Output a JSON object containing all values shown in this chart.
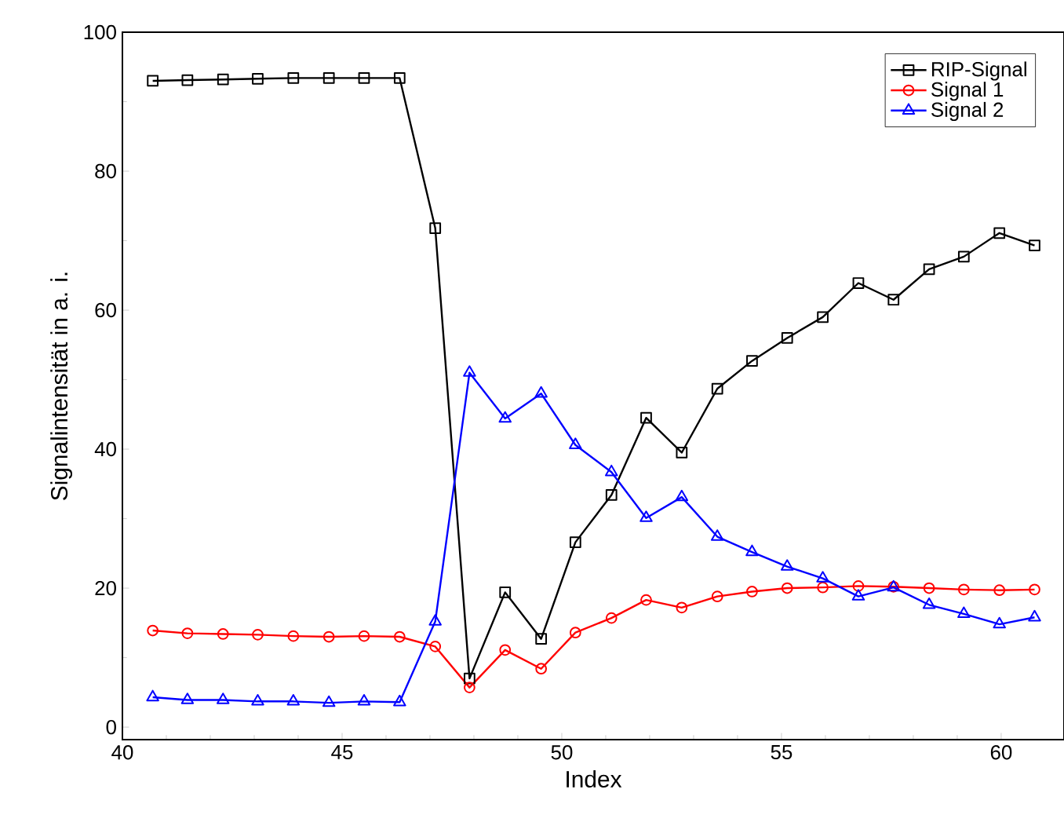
{
  "chart_data": {
    "type": "line",
    "xlabel": "Index",
    "ylabel": "Signalintensität in a. i.",
    "xlim": [
      40,
      61.43
    ],
    "ylim": [
      -1.8,
      100
    ],
    "xticks": [
      40,
      45,
      50,
      55,
      60
    ],
    "yticks": [
      0,
      20,
      40,
      60,
      80,
      100
    ],
    "grid": false,
    "legend": "top right",
    "line_style": "solid",
    "x": [
      40.69,
      41.48,
      42.29,
      43.08,
      43.89,
      44.7,
      45.5,
      46.31,
      47.12,
      47.9,
      48.71,
      49.53,
      50.31,
      51.13,
      51.92,
      52.73,
      53.54,
      54.33,
      55.13,
      55.94,
      56.75,
      57.55,
      58.36,
      59.15,
      59.96,
      60.76
    ],
    "series": [
      {
        "name": "RIP-Signal",
        "color": "#000000",
        "marker": "square",
        "values": [
          93,
          93.1,
          93.2,
          93.3,
          93.4,
          93.4,
          93.4,
          93.4,
          71.8,
          7.0,
          19.4,
          12.7,
          26.6,
          33.4,
          44.5,
          39.5,
          48.7,
          52.7,
          56.0,
          59.0,
          63.9,
          61.5,
          65.9,
          67.7,
          71.1,
          69.3
        ]
      },
      {
        "name": "Signal 1",
        "color": "#ff0000",
        "marker": "circle",
        "values": [
          13.9,
          13.5,
          13.4,
          13.3,
          13.1,
          13.0,
          13.1,
          13.0,
          11.6,
          5.7,
          11.1,
          8.4,
          13.6,
          15.7,
          18.3,
          17.2,
          18.8,
          19.5,
          20.0,
          20.1,
          20.3,
          20.2,
          20.0,
          19.8,
          19.7,
          19.8
        ]
      },
      {
        "name": "Signal 2",
        "color": "#0000ff",
        "marker": "triangle",
        "values": [
          4.3,
          3.9,
          3.9,
          3.7,
          3.7,
          3.5,
          3.7,
          3.6,
          15.2,
          51.0,
          44.4,
          48.0,
          40.6,
          36.7,
          30.1,
          33.1,
          27.4,
          25.2,
          23.1,
          21.4,
          18.8,
          20.1,
          17.6,
          16.3,
          14.8,
          15.8
        ]
      }
    ]
  }
}
